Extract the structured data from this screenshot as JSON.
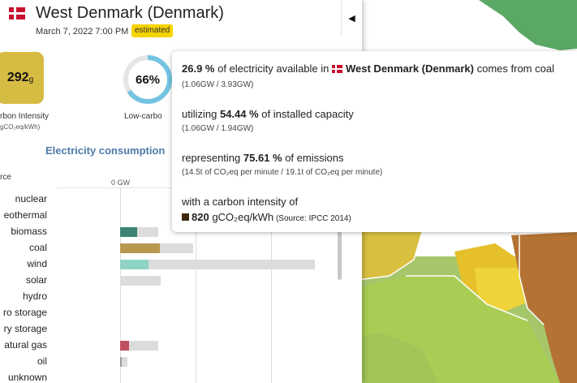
{
  "panel": {
    "zone_name": "West Denmark (Denmark)",
    "datetime": "March 7, 2022 7:00 PM",
    "badge": "estimated",
    "collapse_icon": "◀",
    "carbon_intensity": {
      "value": "292",
      "unit": "g",
      "label": "rbon Intensity",
      "sublabel": "gCO₂eq/kWh)"
    },
    "low_carbon": {
      "value": "66%",
      "fraction": 0.66,
      "label": "Low-carbo"
    },
    "section_title": "Electricity consumption",
    "source_column": "rce",
    "axis_zero": "0 GW",
    "rows": [
      {
        "label": "nuclear"
      },
      {
        "label": "eothermal"
      },
      {
        "label": "biomass"
      },
      {
        "label": "coal"
      },
      {
        "label": "wind"
      },
      {
        "label": "solar"
      },
      {
        "label": "hydro"
      },
      {
        "label": "ro storage"
      },
      {
        "label": "ry storage"
      },
      {
        "label": "atural gas"
      },
      {
        "label": "oil"
      },
      {
        "label": "unknown"
      }
    ]
  },
  "tooltip": {
    "line1_pct": "26.9 %",
    "line1_mid": " of electricity available in ",
    "line1_zone": "West Denmark (Denmark)",
    "line1_end": " comes from coal",
    "line1_sub": "(1.06GW / 3.93GW)",
    "line2_pre": "utilizing ",
    "line2_pct": "54.44 %",
    "line2_end": " of installed capacity",
    "line2_sub": "(1.06GW / 1.94GW)",
    "line3_pre": "representing ",
    "line3_pct": "75.61 %",
    "line3_end": " of emissions",
    "line3_sub": "(14.5t of CO₂eq per minute / 19.1t of CO₂eq per minute)",
    "line4": "with a carbon intensity of",
    "ci_value": "820",
    "ci_unit": " gCO₂eq/kWh",
    "ci_source": " (Source: IPCC 2014)",
    "ci_color": "#3f2a0f"
  },
  "colors": {
    "biomass": "#3d8474",
    "coal": "#b9974e",
    "wind": "#8fd3c4",
    "gas": "#c04f62",
    "oil": "#9a9a9a",
    "capacity": "#dcdcdc",
    "carbon_box": "#d7bc43",
    "ring": "#74c4e1",
    "title": "#4c7aa9",
    "badge": "#f5d300"
  }
}
